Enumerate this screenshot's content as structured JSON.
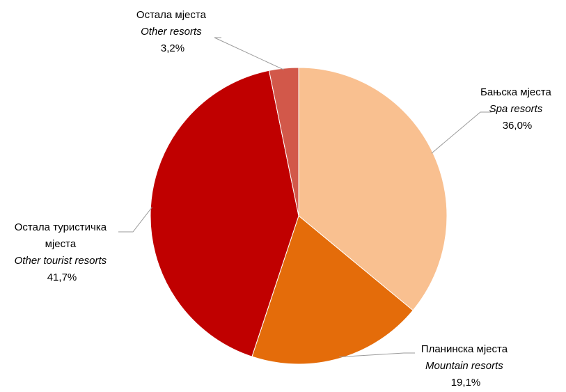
{
  "chart_data": {
    "type": "pie",
    "slices": [
      {
        "label": "Бањска мјеста",
        "label_en": "Spa resorts",
        "value": 36.0,
        "value_label": "36,0%",
        "color": "#F9C090"
      },
      {
        "label": "Планинска мјеста",
        "label_en": "Mountain resorts",
        "value": 19.1,
        "value_label": "19,1%",
        "color": "#E46C0A"
      },
      {
        "label": "Остала туристичка мјеста",
        "label_en": "Other tourist resorts",
        "value": 41.7,
        "value_label": "41,7%",
        "color": "#C00000"
      },
      {
        "label": "Остала мјеста",
        "label_en": "Other resorts",
        "value": 3.2,
        "value_label": "3,2%",
        "color": "#D2584A"
      }
    ],
    "start_angle_deg": 0,
    "direction": "clockwise"
  }
}
